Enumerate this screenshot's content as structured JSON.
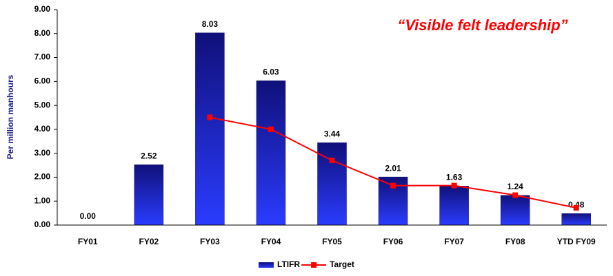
{
  "chart_data": {
    "type": "bar",
    "annotation": "“Visible felt leadership”",
    "y_label": "Per million manhours",
    "categories": [
      "FY01",
      "FY02",
      "FY03",
      "FY04",
      "FY05",
      "FY06",
      "FY07",
      "FY08",
      "YTD FY09"
    ],
    "series": [
      {
        "name": "LTIFR",
        "type": "bar",
        "color": "#10107a",
        "values": [
          0,
          2.52,
          8.03,
          6.03,
          3.44,
          2.01,
          1.63,
          1.24,
          0.48
        ],
        "value_labels": [
          "0.00",
          "2.52",
          "8.03",
          "6.03",
          "3.44",
          "2.01",
          "1.63",
          "1.24",
          "0.48"
        ]
      },
      {
        "name": "Target",
        "type": "line",
        "color": "#ff0000",
        "values": [
          null,
          null,
          4.5,
          4.0,
          2.7,
          1.65,
          1.65,
          1.25,
          0.72
        ]
      }
    ],
    "ylim": [
      0,
      9
    ],
    "yticks": [
      {
        "value": 0,
        "label": "0.00"
      },
      {
        "value": 1,
        "label": "1.00"
      },
      {
        "value": 2,
        "label": "2.00"
      },
      {
        "value": 3,
        "label": "3.00"
      },
      {
        "value": 4,
        "label": "4.00"
      },
      {
        "value": 5,
        "label": "5.00"
      },
      {
        "value": 6,
        "label": "6.00"
      },
      {
        "value": 7,
        "label": "7.00"
      },
      {
        "value": 8,
        "label": "8.00"
      },
      {
        "value": 9,
        "label": "9.00"
      }
    ],
    "legend": "bottom"
  }
}
